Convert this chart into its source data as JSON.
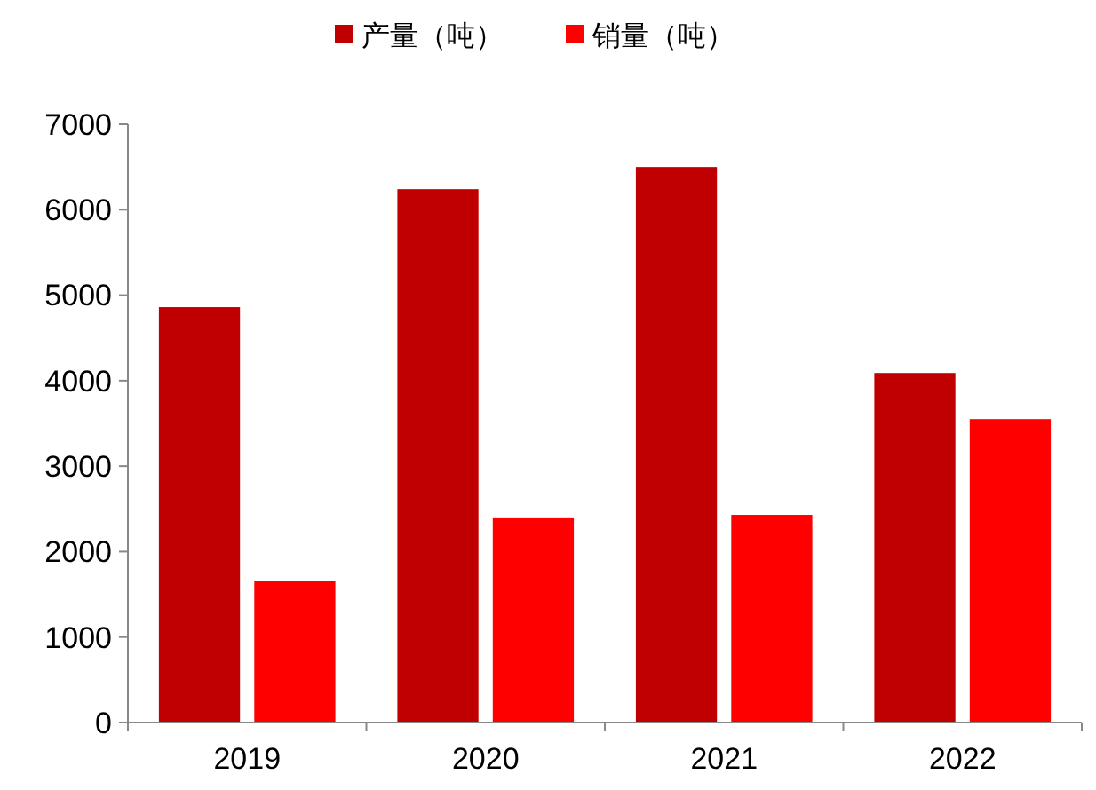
{
  "chart_data": {
    "type": "bar",
    "categories": [
      "2019",
      "2020",
      "2021",
      "2022"
    ],
    "series": [
      {
        "name": "产量（吨）",
        "color": "#c00000",
        "values": [
          4860,
          6240,
          6500,
          4090
        ]
      },
      {
        "name": "销量（吨）",
        "color": "#ff0000",
        "values": [
          1660,
          2390,
          2430,
          3550
        ]
      }
    ],
    "ylim": [
      0,
      7000
    ],
    "yticks": [
      0,
      1000,
      2000,
      3000,
      4000,
      5000,
      6000,
      7000
    ],
    "legend": "top",
    "grid": false
  }
}
